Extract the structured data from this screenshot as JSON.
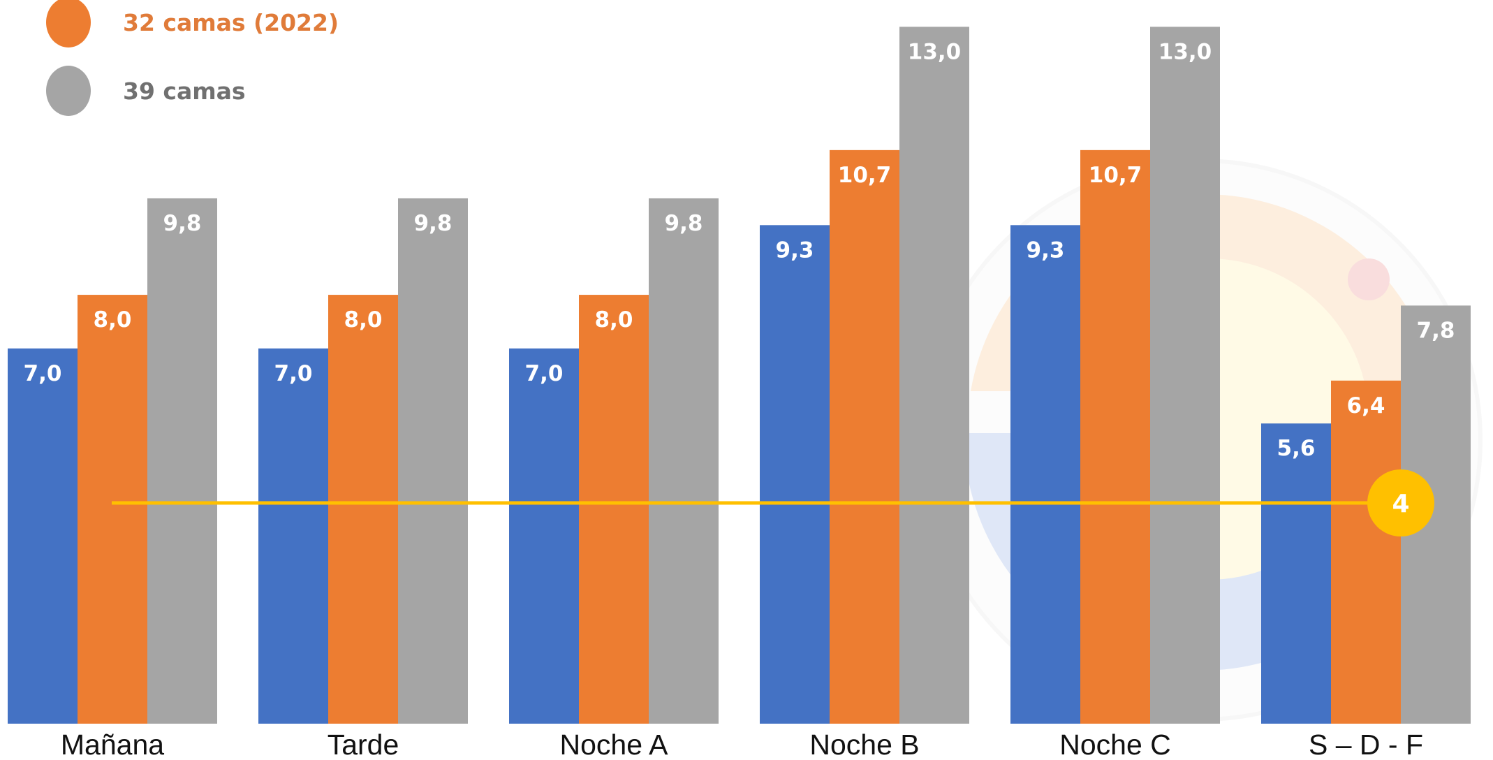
{
  "chart_data": {
    "type": "bar",
    "categories": [
      "Mañana",
      "Tarde",
      "Noche A",
      "Noche B",
      "Noche C",
      "S – D - F"
    ],
    "series": [
      {
        "color": "#4472C4",
        "values": [
          7.0,
          7.0,
          7.0,
          9.3,
          9.3,
          5.6
        ],
        "labels": [
          "7,0",
          "7,0",
          "7,0",
          "9,3",
          "9,3",
          "5,6"
        ]
      },
      {
        "name": "32 camas (2022)",
        "color": "#ED7D31",
        "values": [
          8.0,
          8.0,
          8.0,
          10.7,
          10.7,
          6.4
        ],
        "labels": [
          "8,0",
          "8,0",
          "8,0",
          "10,7",
          "10,7",
          "6,4"
        ]
      },
      {
        "name": "39 camas",
        "color": "#A5A5A5",
        "values": [
          9.8,
          9.8,
          9.8,
          13.0,
          13.0,
          7.8
        ],
        "labels": [
          "9,8",
          "9,8",
          "9,8",
          "13,0",
          "13,0",
          "7,8"
        ]
      }
    ],
    "reference_line": {
      "value": 4,
      "label": "4",
      "color": "#FFC000"
    },
    "legend_colors": {
      "32 camas (2022)": "#E07B39",
      "39 camas": "#707070"
    },
    "ylim": [
      0,
      13.2
    ],
    "legend_position": "top-left",
    "grid": false
  }
}
